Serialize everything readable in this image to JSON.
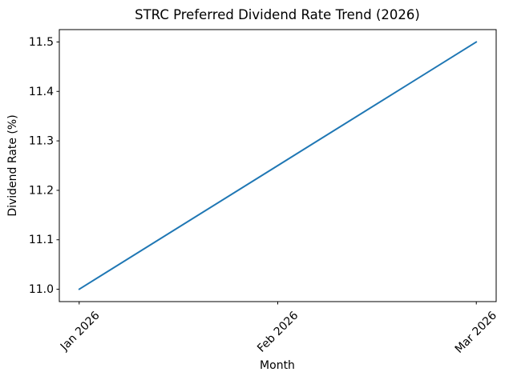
{
  "chart_data": {
    "type": "line",
    "title": "STRC Preferred Dividend Rate Trend (2026)",
    "xlabel": "Month",
    "ylabel": "Dividend Rate (%)",
    "categories": [
      "Jan 2026",
      "Feb 2026",
      "Mar 2026"
    ],
    "series": [
      {
        "name": "STRC Preferred Dividend Rate",
        "values": [
          11.0,
          11.25,
          11.5
        ]
      }
    ],
    "yticks": [
      11.0,
      11.1,
      11.2,
      11.3,
      11.4,
      11.5
    ],
    "ytick_labels": [
      "11.0",
      "11.1",
      "11.2",
      "11.3",
      "11.4",
      "11.5"
    ],
    "ylim": [
      10.975,
      11.525
    ],
    "x_tick_rotation_deg": 45,
    "line_color": "#1f77b4",
    "spine_color": "#000000",
    "text_color": "#000000",
    "background_color": "#ffffff",
    "grid": false,
    "legend_position": "none",
    "markers": "none"
  }
}
